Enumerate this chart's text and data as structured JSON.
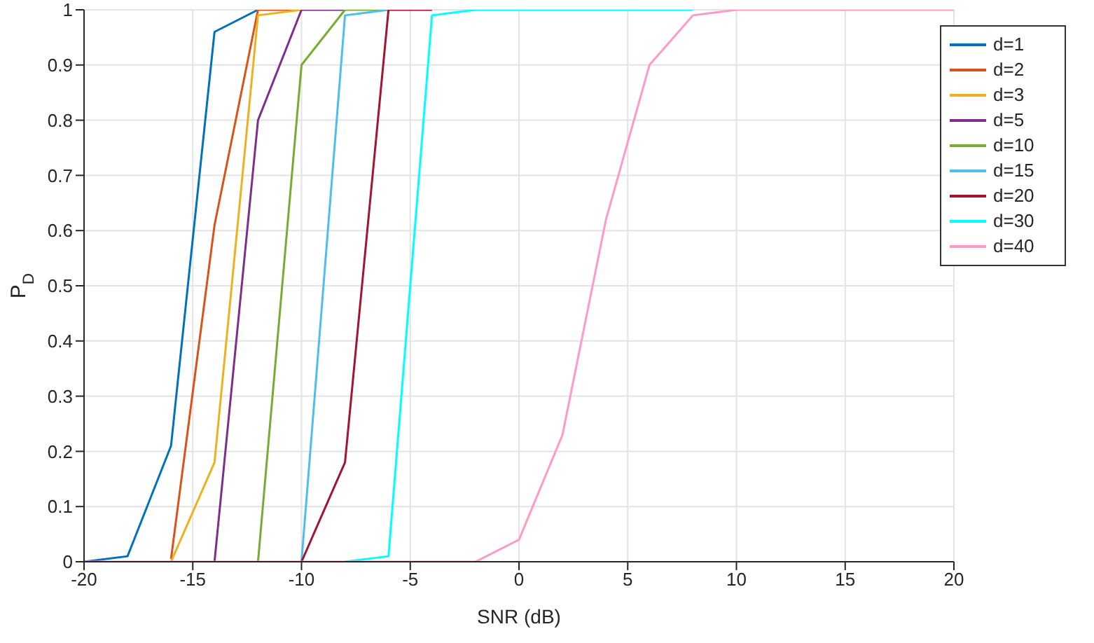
{
  "chart_data": {
    "type": "line",
    "xlabel": "SNR (dB)",
    "ylabel": "P$_{D}$",
    "x": [
      -20,
      -18,
      -16,
      -14,
      -12,
      -10,
      -8,
      -6,
      -4,
      -2,
      0,
      2,
      4,
      6,
      8,
      10,
      12,
      14,
      16,
      18,
      20
    ],
    "series": [
      {
        "name": "d=1",
        "color": "#0072bd",
        "values": [
          0,
          0.01,
          0.21,
          0.96,
          1,
          null,
          null,
          null,
          null,
          null,
          null,
          null,
          null,
          null,
          null,
          null,
          null,
          null,
          null,
          null,
          null
        ]
      },
      {
        "name": "d=2",
        "color": "#d95319",
        "values": [
          null,
          null,
          0.005,
          0.61,
          1,
          1,
          null,
          null,
          null,
          null,
          null,
          null,
          null,
          null,
          null,
          null,
          null,
          null,
          null,
          null,
          null
        ]
      },
      {
        "name": "d=3",
        "color": "#edb120",
        "values": [
          null,
          null,
          0,
          0.18,
          0.99,
          1,
          null,
          null,
          null,
          null,
          null,
          null,
          null,
          null,
          null,
          null,
          null,
          null,
          null,
          null,
          null
        ]
      },
      {
        "name": "d=5",
        "color": "#7e2f8e",
        "values": [
          null,
          null,
          null,
          0,
          0.8,
          1,
          1,
          null,
          null,
          null,
          null,
          null,
          null,
          null,
          null,
          null,
          null,
          null,
          null,
          null,
          null
        ]
      },
      {
        "name": "d=10",
        "color": "#77ac30",
        "values": [
          null,
          null,
          null,
          null,
          0,
          0.9,
          1,
          1,
          null,
          null,
          null,
          null,
          null,
          null,
          null,
          null,
          null,
          null,
          null,
          null,
          null
        ]
      },
      {
        "name": "d=15",
        "color": "#4dbeee",
        "values": [
          null,
          null,
          null,
          null,
          null,
          0,
          0.99,
          1,
          null,
          null,
          null,
          null,
          null,
          null,
          null,
          null,
          null,
          null,
          null,
          null,
          null
        ]
      },
      {
        "name": "d=20",
        "color": "#a2142f",
        "values": [
          null,
          null,
          null,
          null,
          null,
          0,
          0.18,
          1,
          1,
          null,
          null,
          null,
          null,
          null,
          null,
          null,
          null,
          null,
          null,
          null,
          null
        ]
      },
      {
        "name": "d=30",
        "color": "#00ffff",
        "values": [
          null,
          null,
          null,
          null,
          null,
          null,
          0,
          0.01,
          0.99,
          1,
          1,
          1,
          1,
          1,
          1,
          null,
          null,
          null,
          null,
          null,
          null
        ]
      },
      {
        "name": "d=40",
        "color": "#ff99c8",
        "values": [
          0,
          0,
          0,
          0,
          0,
          0,
          0,
          0,
          0,
          0,
          0.04,
          0.23,
          0.62,
          0.9,
          0.99,
          1,
          1,
          1,
          1,
          1,
          1
        ]
      }
    ],
    "xlim": [
      -20,
      20
    ],
    "xticks": [
      -20,
      -15,
      -10,
      -5,
      0,
      5,
      10,
      15,
      20
    ],
    "ylim": [
      0,
      1
    ],
    "yticks": [
      0,
      0.1,
      0.2,
      0.3,
      0.4,
      0.5,
      0.6,
      0.7,
      0.8,
      0.9,
      1
    ],
    "grid": true,
    "legend": "top right",
    "marker": "none",
    "line_style": "solid"
  }
}
